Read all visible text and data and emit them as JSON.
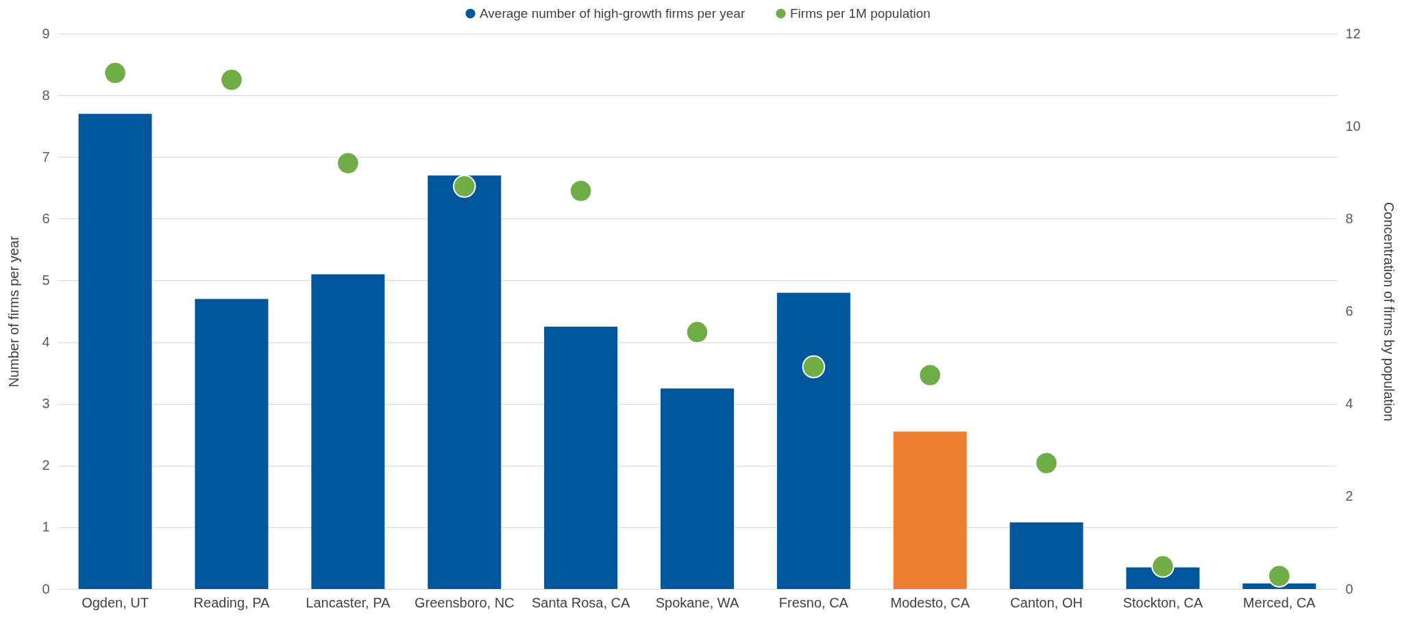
{
  "chart_data": {
    "type": "bar",
    "ylabel": "Number of firms per year",
    "y2label": "Concentration of firms by population",
    "categories": [
      "Ogden, UT",
      "Reading, PA",
      "Lancaster, PA",
      "Greensboro, NC",
      "Santa Rosa, CA",
      "Spokane, WA",
      "Fresno, CA",
      "Modesto, CA",
      "Canton, OH",
      "Stockton, CA",
      "Merced, CA"
    ],
    "series": [
      {
        "name": "Average number of high-growth firms per year",
        "color": "#02569b",
        "colors": [
          "#02569b",
          "#02569b",
          "#02569b",
          "#02569b",
          "#02569b",
          "#02569b",
          "#02569b",
          "#ed7d31",
          "#02569b",
          "#02569b",
          "#02569b"
        ],
        "values": [
          7.7,
          4.7,
          5.1,
          6.7,
          4.25,
          3.25,
          4.8,
          2.55,
          1.08,
          0.35,
          0.09
        ]
      },
      {
        "name": "Firms per 1M population",
        "type": "scatter",
        "axis": "y2",
        "color": "#70ad47",
        "values": [
          11.15,
          11.0,
          9.2,
          8.7,
          8.6,
          5.55,
          4.8,
          4.62,
          2.72,
          0.49,
          0.28
        ]
      }
    ],
    "ylim": [
      0,
      9
    ],
    "yticks": [
      0,
      1,
      2,
      3,
      4,
      5,
      6,
      7,
      8,
      9
    ],
    "y2lim": [
      0,
      12
    ],
    "y2ticks": [
      0,
      2,
      4,
      6,
      8,
      10,
      12
    ],
    "grid": "y",
    "legend": "top",
    "marker": "circle"
  }
}
